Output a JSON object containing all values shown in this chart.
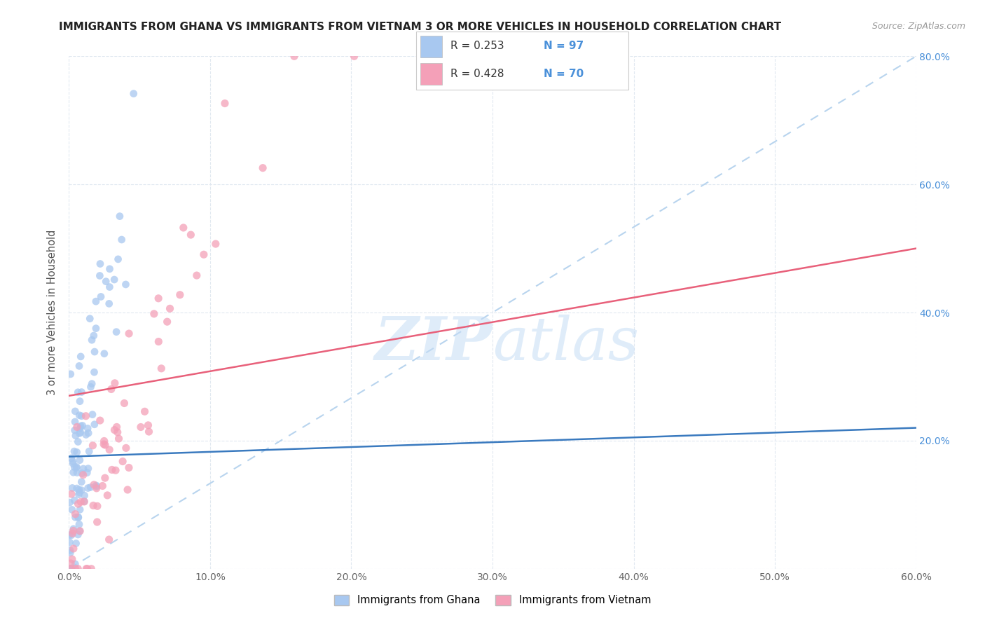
{
  "title": "IMMIGRANTS FROM GHANA VS IMMIGRANTS FROM VIETNAM 3 OR MORE VEHICLES IN HOUSEHOLD CORRELATION CHART",
  "source": "Source: ZipAtlas.com",
  "ylabel": "3 or more Vehicles in Household",
  "xlim": [
    0.0,
    0.6
  ],
  "ylim": [
    0.0,
    0.8
  ],
  "ghana_R": 0.253,
  "ghana_N": 97,
  "vietnam_R": 0.428,
  "vietnam_N": 70,
  "ghana_color": "#a8c8f0",
  "vietnam_color": "#f4a0b8",
  "ghana_line_color": "#3a7abf",
  "vietnam_line_color": "#e8607a",
  "diagonal_color": "#b8d4ee",
  "legend_label_ghana": "Immigrants from Ghana",
  "legend_label_vietnam": "Immigrants from Vietnam",
  "tick_color": "#4a90d9",
  "ylabel_color": "#555555",
  "grid_color": "#e0e8f0"
}
